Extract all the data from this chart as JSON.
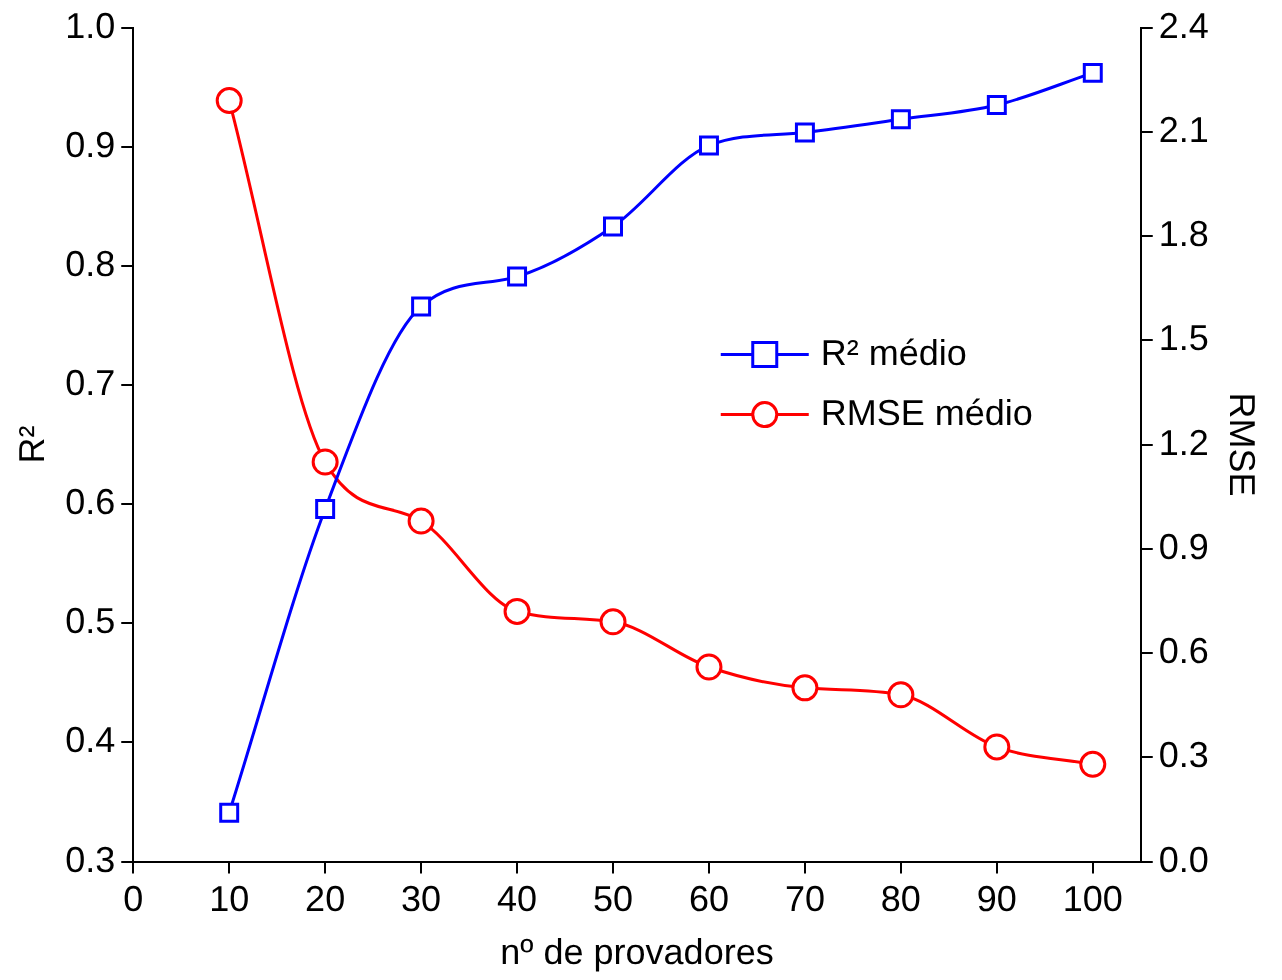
{
  "chart_data": {
    "type": "line",
    "xlabel": "nº de provadores",
    "ylabel": "R²",
    "y2label": "RMSE",
    "x": [
      10,
      20,
      30,
      40,
      50,
      60,
      70,
      80,
      90,
      100
    ],
    "series": [
      {
        "name": "R² médio",
        "color": "#0000ff",
        "marker": "square",
        "values": [
          0.341,
          0.596,
          0.766,
          0.791,
          0.833,
          0.901,
          0.912,
          0.923,
          0.935,
          0.962
        ]
      },
      {
        "name": "RMSE médio",
        "color": "#ff0000",
        "marker": "circle",
        "axis": "y2",
        "values": [
          2.19,
          1.15,
          0.98,
          0.72,
          0.69,
          0.56,
          0.5,
          0.48,
          0.33,
          0.28
        ]
      }
    ],
    "xlim": [
      0,
      105
    ],
    "xticks": [
      0,
      10,
      20,
      30,
      40,
      50,
      60,
      70,
      80,
      90,
      100
    ],
    "ylim": [
      0.3,
      1.0
    ],
    "yticks": [
      0.3,
      0.4,
      0.5,
      0.6,
      0.7,
      0.8,
      0.9,
      {
        "value": 1,
        "label": "1.0"
      }
    ],
    "y2lim": [
      0,
      2.4
    ],
    "y2ticks": [
      {
        "value": 0,
        "label": "0.0"
      },
      0.3,
      0.6,
      0.9,
      1.2,
      1.5,
      1.8,
      2.1,
      2.4
    ],
    "legend": "right",
    "grid": false,
    "line_style": "solid"
  }
}
